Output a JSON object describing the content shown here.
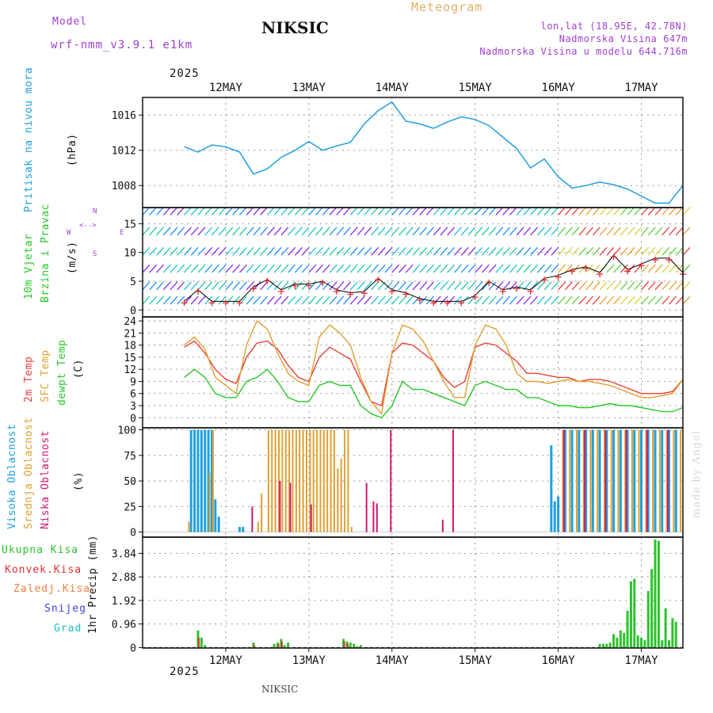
{
  "header": {
    "model_label": "Model",
    "model_name": "wrf-nmm_v3.9.1 e1km",
    "station": "NIKSIC",
    "app_title": "Meteogram",
    "lonlat": "lon,lat (18.95E, 42.78N)",
    "elevation": "Nadmorska Visina 647m",
    "model_elevation": "Nadmorska Visina u modelu 644.716m",
    "year": "2025",
    "footer_station": "NIKSIC",
    "watermark": "made by Angel"
  },
  "panel_labels": {
    "pressure": [
      "Pritisak na nivou mora",
      "(hPa)"
    ],
    "wind": [
      "10m Vjetar",
      "Brzina i Pravac",
      "(m/s)"
    ],
    "compass": [
      "N",
      "W",
      "E",
      "S"
    ],
    "temp": [
      "2m Temp",
      "SFC Temp",
      "dewpt Temp",
      "(C)"
    ],
    "cloud": [
      "Visoka Oblacnost",
      "Srednja Oblacnost",
      "Niska Oblacnost",
      "(%)"
    ],
    "precip_legend": [
      "Ukupna Kisa",
      "Konvek.Kisa",
      "Zaledj.Kisa",
      "Snijeg",
      "Grad"
    ],
    "precip_axis": "1hr Precip (mm)"
  },
  "colors": {
    "pressure": "#1e9fe0",
    "temp2m": "#e8403c",
    "sfc": "#e0a030",
    "dew": "#28c828",
    "cloud_high": "#1ea0e0",
    "cloud_mid": "#e0a030",
    "cloud_low": "#d01870",
    "precip_total": "#2ec22e",
    "precip_conv": "#e03030",
    "precip_freeze": "#f08040",
    "snow": "#4040e0",
    "hail": "#20c0c0",
    "model_text": "#a040d0",
    "title_orange": "#e0b060"
  },
  "chart_data": [
    {
      "type": "line",
      "name": "pressure",
      "x_ticks": [
        "12MAY",
        "13MAY",
        "14MAY",
        "15MAY",
        "16MAY",
        "17MAY"
      ],
      "y_ticks": [
        1008,
        1012,
        1016
      ],
      "ylim": [
        1005.5,
        1018
      ],
      "ylabel": "(hPa)",
      "x_hours": [
        0,
        4,
        8,
        12,
        16,
        20,
        24,
        28,
        32,
        36,
        40,
        44,
        48,
        52,
        56,
        60,
        64,
        68,
        72,
        76,
        80,
        84,
        88,
        92,
        96,
        100,
        104,
        108,
        112,
        116,
        120,
        124,
        128,
        132,
        136,
        140,
        144
      ],
      "values": [
        1012.4,
        1011.8,
        1012.6,
        1012.4,
        1011.8,
        1009.3,
        1009.9,
        1011.2,
        1012.0,
        1013.0,
        1012.0,
        1012.5,
        1012.9,
        1015.0,
        1016.5,
        1017.5,
        1015.3,
        1015.0,
        1014.5,
        1015.2,
        1015.8,
        1015.5,
        1014.8,
        1013.5,
        1012.2,
        1010.0,
        1011.0,
        1009.0,
        1007.7,
        1008.0,
        1008.4,
        1008.1,
        1007.6,
        1006.8,
        1006.0,
        1006.0,
        1008.0
      ]
    },
    {
      "type": "line",
      "name": "wind",
      "y_ticks": [
        0,
        5,
        10,
        15
      ],
      "ylim": [
        -1.2,
        17.8
      ],
      "ylabel": "(m/s)",
      "x_hours": [
        0,
        4,
        8,
        12,
        16,
        20,
        24,
        28,
        32,
        36,
        40,
        44,
        48,
        52,
        56,
        60,
        64,
        68,
        72,
        76,
        80,
        84,
        88,
        92,
        96,
        100,
        104,
        108,
        112,
        116,
        120,
        124,
        128,
        132,
        136,
        140,
        144
      ],
      "values": [
        1.5,
        3.5,
        1.5,
        1.5,
        1.5,
        4.0,
        5.3,
        3.5,
        4.5,
        4.5,
        5.0,
        3.5,
        3.0,
        3.2,
        5.5,
        3.5,
        3.0,
        2.0,
        1.5,
        1.5,
        1.5,
        2.5,
        5.0,
        3.5,
        4.0,
        3.5,
        5.5,
        6.0,
        7.0,
        7.5,
        6.5,
        9.5,
        7.0,
        8.0,
        9.0,
        9.0,
        6.5
      ]
    },
    {
      "type": "line",
      "name": "temperature",
      "y_ticks": [
        0,
        3,
        6,
        9,
        12,
        15,
        18,
        21,
        24
      ],
      "ylim": [
        -2.5,
        25
      ],
      "ylabel": "(C)",
      "x_hours": [
        0,
        3,
        6,
        9,
        12,
        15,
        18,
        21,
        24,
        27,
        30,
        33,
        36,
        39,
        42,
        45,
        48,
        51,
        54,
        57,
        60,
        63,
        66,
        69,
        72,
        75,
        78,
        81,
        84,
        87,
        90,
        93,
        96,
        99,
        102,
        105,
        108,
        111,
        114,
        117,
        120,
        123,
        126,
        129,
        132,
        135,
        138,
        141,
        144
      ],
      "series": [
        {
          "name": "2m Temp",
          "values": [
            17.5,
            19,
            16,
            12,
            9.5,
            8.5,
            15,
            18.5,
            19,
            17,
            13,
            10,
            9,
            15,
            17.5,
            16,
            14.5,
            9,
            4,
            3,
            16,
            18.5,
            18,
            16,
            14,
            10,
            7.5,
            9,
            17.5,
            18.5,
            18,
            16,
            14,
            11,
            11,
            10.5,
            10,
            10,
            9,
            9.5,
            9.5,
            9,
            8,
            7,
            6,
            6,
            6,
            6.5,
            9.5
          ]
        },
        {
          "name": "SFC Temp",
          "values": [
            18,
            20,
            17,
            10,
            8,
            6,
            18,
            24,
            22,
            16,
            11,
            9,
            8,
            20,
            23,
            21,
            18,
            10,
            4,
            1,
            16,
            23,
            22,
            19,
            14,
            9,
            5,
            5,
            18,
            23,
            22,
            18,
            11,
            9,
            9,
            8.5,
            9,
            9.5,
            9,
            9,
            8.5,
            8,
            7,
            6,
            5,
            5,
            5.5,
            6,
            9.5
          ]
        },
        {
          "name": "dewpt Temp",
          "values": [
            10,
            12,
            10,
            6,
            5,
            5,
            9,
            10,
            12,
            9,
            5,
            4,
            4,
            8,
            9,
            8,
            8,
            3,
            1,
            0,
            3,
            9,
            7,
            7,
            6,
            5,
            4,
            3,
            8,
            9,
            8,
            7,
            7,
            5,
            5,
            4,
            3,
            3,
            2.5,
            2.5,
            3,
            3.5,
            3,
            3,
            2.5,
            2,
            1.5,
            1.5,
            2.5
          ]
        }
      ]
    },
    {
      "type": "bar",
      "name": "cloud",
      "y_ticks": [
        0,
        25,
        50,
        75,
        100
      ],
      "ylim": [
        -5,
        102
      ],
      "ylabel": "(%)",
      "series": [
        {
          "name": "Visoka Oblacnost",
          "x_hours": [
            2,
            3,
            4,
            5,
            6,
            7,
            8,
            9,
            10,
            16,
            17,
            106,
            107,
            108,
            110,
            112,
            114,
            116,
            118,
            120,
            122,
            124,
            126,
            128,
            130,
            132,
            134,
            136,
            138,
            140,
            142
          ],
          "values": [
            100,
            100,
            100,
            100,
            100,
            100,
            100,
            32,
            15,
            5,
            5,
            85,
            30,
            35,
            100,
            100,
            100,
            100,
            100,
            100,
            100,
            100,
            100,
            100,
            100,
            100,
            100,
            100,
            100,
            100,
            100
          ]
        },
        {
          "name": "Srednja Oblacnost",
          "x_hours": [
            1,
            7,
            8,
            21,
            22,
            24,
            25,
            26,
            27,
            28,
            29,
            30,
            31,
            32,
            33,
            34,
            35,
            36,
            37,
            38,
            39,
            40,
            41,
            42,
            43,
            44,
            45,
            46,
            47,
            48,
            109,
            111,
            113,
            115,
            117,
            119,
            121,
            123,
            125,
            127,
            129,
            131,
            133,
            135,
            137,
            139,
            141,
            143
          ],
          "values": [
            10,
            58,
            100,
            10,
            38,
            100,
            100,
            100,
            100,
            100,
            100,
            100,
            100,
            100,
            100,
            100,
            100,
            100,
            100,
            100,
            100,
            100,
            100,
            100,
            100,
            62,
            72,
            100,
            100,
            5,
            100,
            100,
            100,
            100,
            100,
            100,
            100,
            100,
            100,
            100,
            100,
            100,
            100,
            100,
            100,
            100,
            100,
            100
          ]
        },
        {
          "name": "Niska Oblacnost",
          "x_hours": [
            20,
            28,
            31,
            37,
            53,
            55,
            56,
            60,
            75,
            78,
            110,
            116,
            122,
            128,
            134,
            140
          ],
          "values": [
            25,
            50,
            48,
            27,
            48,
            30,
            28,
            100,
            12,
            100,
            100,
            100,
            100,
            100,
            100,
            100
          ]
        }
      ]
    },
    {
      "type": "bar",
      "name": "precipitation",
      "y_ticks": [
        0,
        0.96,
        1.92,
        2.88,
        3.84
      ],
      "ylim": [
        -0.02,
        4.5
      ],
      "ylabel": "1hr Precip (mm)",
      "series": [
        {
          "name": "Ukupna Kisa",
          "x_hours": [
            4,
            5,
            6,
            20,
            26,
            27,
            28,
            29,
            30,
            46,
            47,
            48,
            49,
            50,
            51,
            120,
            121,
            122,
            123,
            124,
            125,
            126,
            127,
            128,
            129,
            130,
            131,
            132,
            133,
            134,
            135,
            136,
            137,
            138,
            139,
            140,
            141,
            142
          ],
          "values": [
            0.7,
            0.4,
            0.1,
            0.2,
            0.15,
            0.2,
            0.35,
            0.1,
            0.2,
            0.35,
            0.25,
            0.2,
            0.15,
            0.05,
            0.1,
            0.15,
            0.15,
            0.15,
            0.2,
            0.55,
            0.4,
            0.7,
            0.6,
            1.5,
            2.7,
            2.8,
            0.5,
            0.4,
            0.3,
            2.3,
            3.2,
            4.4,
            4.35,
            0.3,
            1.6,
            0.3,
            1.2,
            1.05
          ]
        },
        {
          "name": "Konvek.Kisa",
          "x_hours": [
            4,
            20,
            27,
            28,
            46,
            47
          ],
          "values": [
            0.4,
            0.1,
            0.15,
            0.25,
            0.25,
            0.15
          ]
        }
      ]
    }
  ]
}
